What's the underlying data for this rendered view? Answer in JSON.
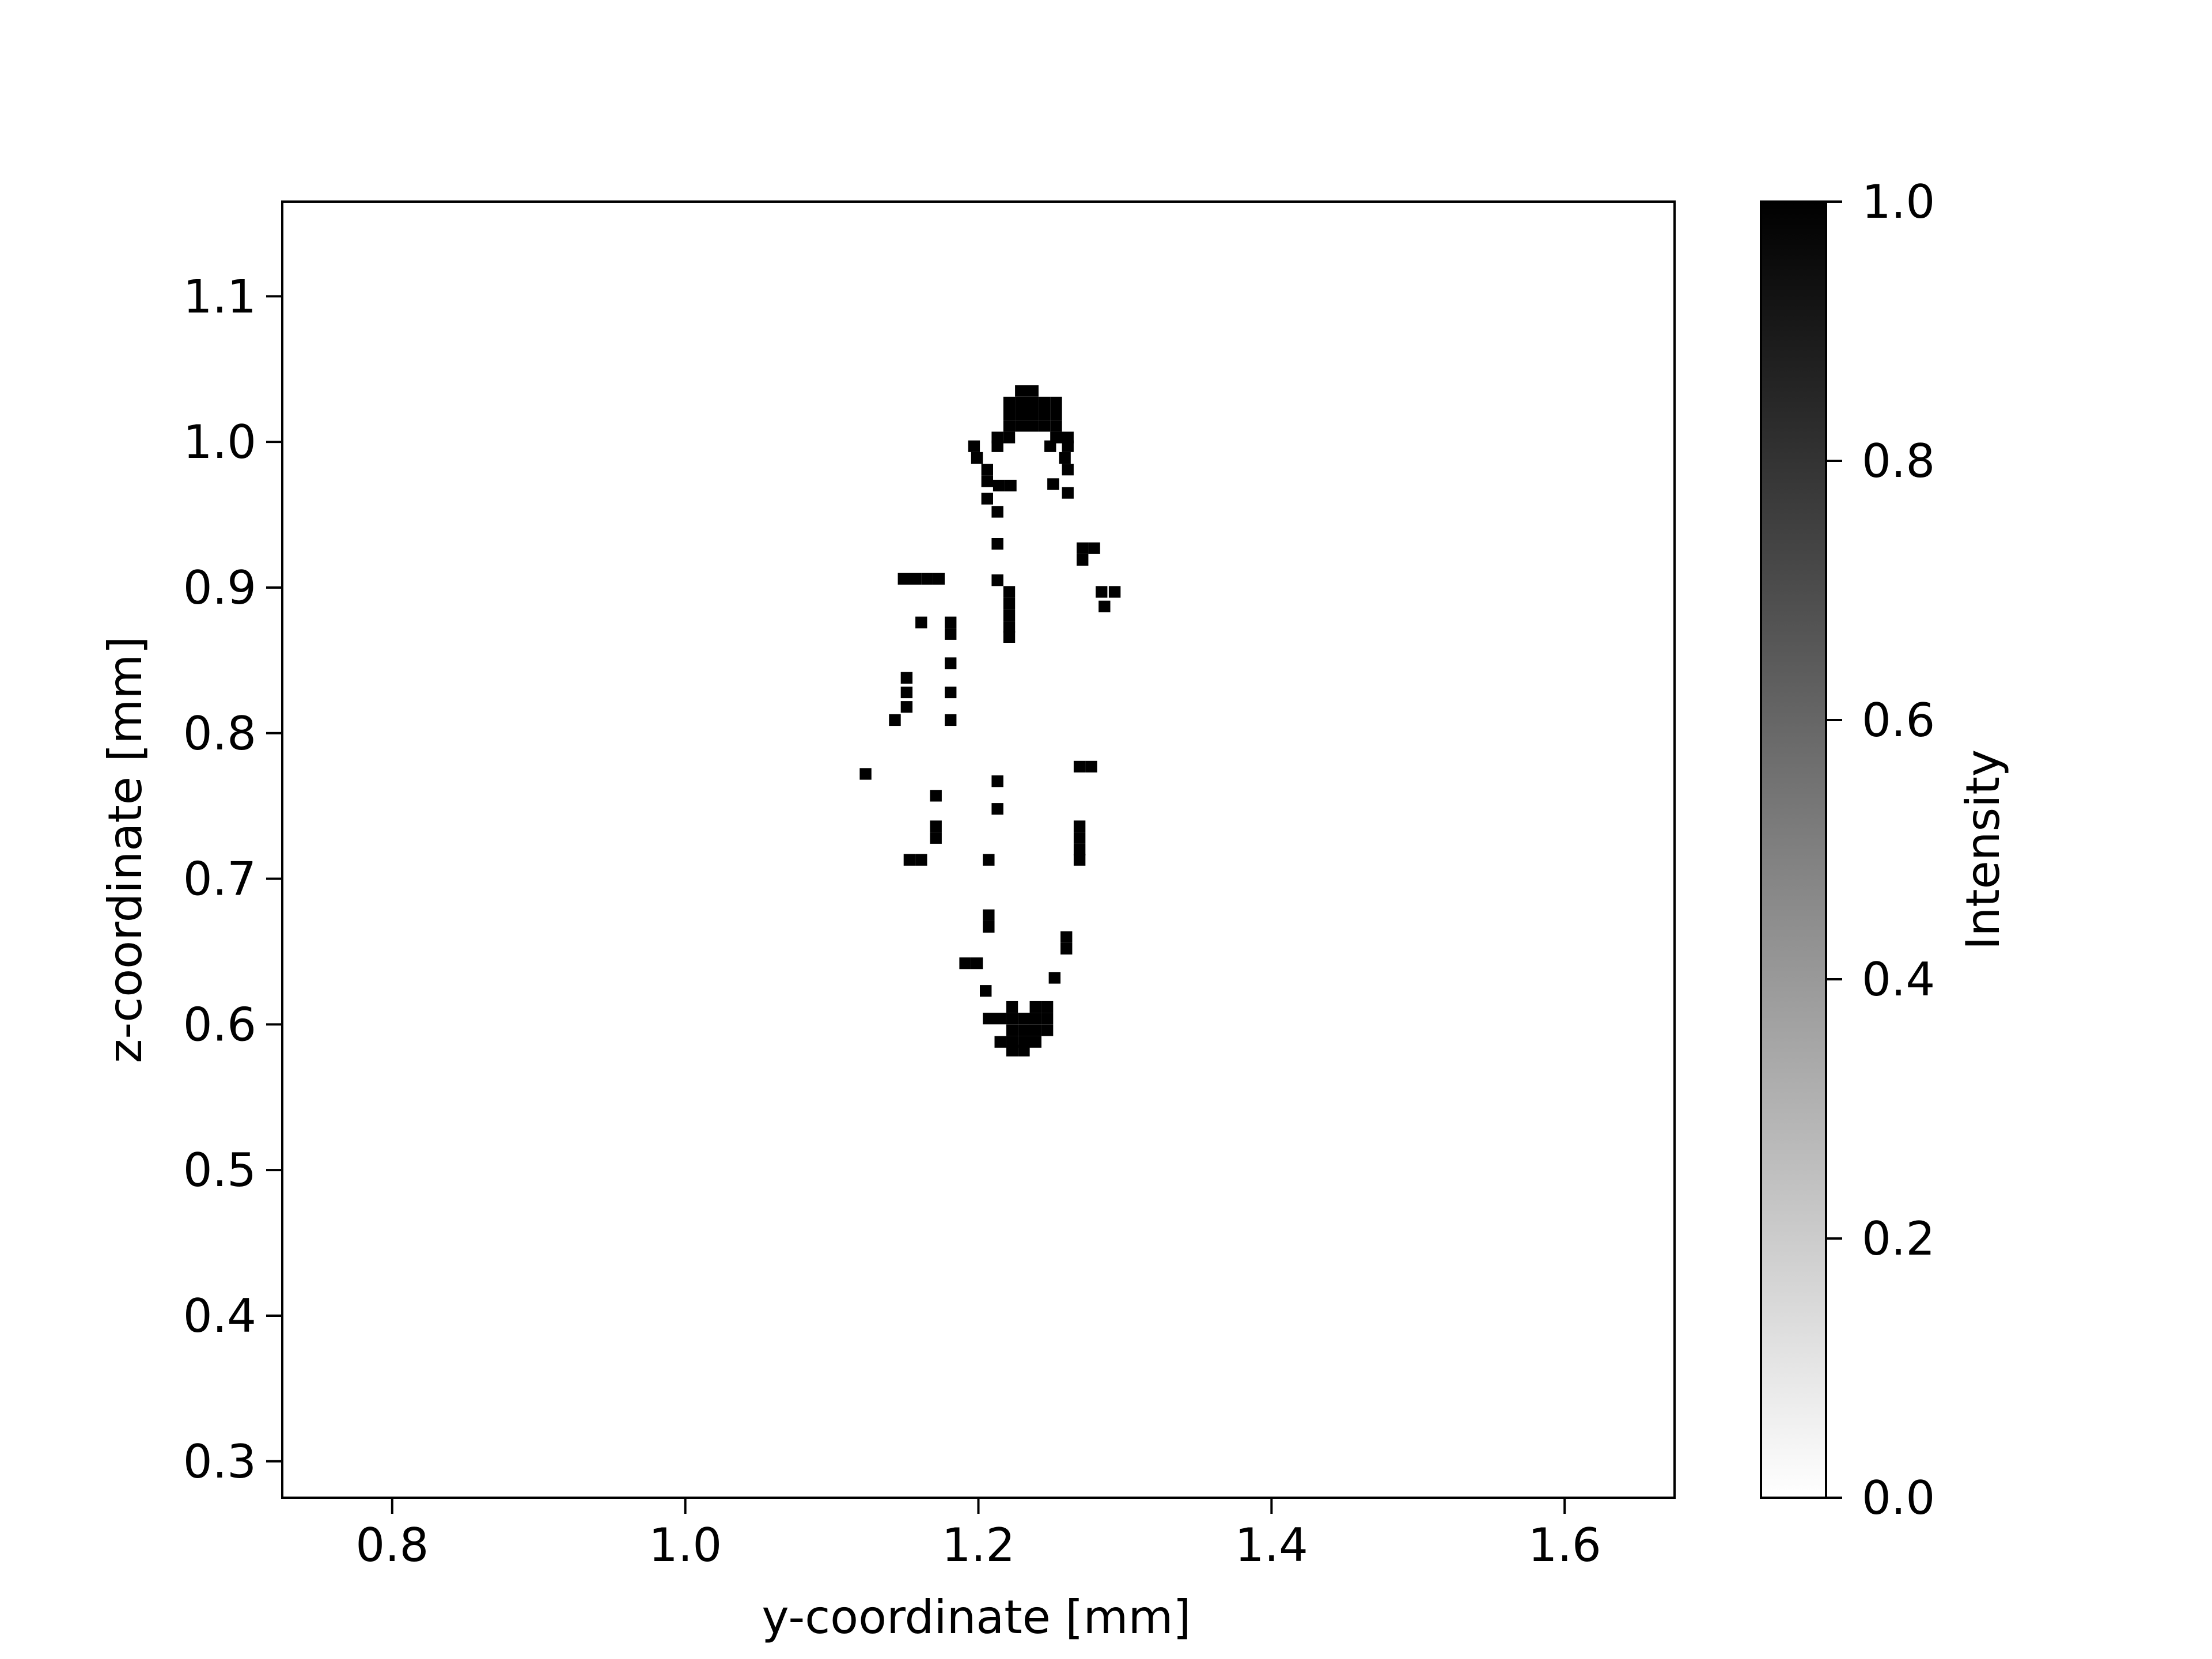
{
  "chart_data": {
    "type": "heatmap",
    "title": "",
    "xlabel": "y-coordinate [mm]",
    "ylabel": "z-coordinate [mm]",
    "xlim": [
      0.725,
      1.675
    ],
    "ylim": [
      0.275,
      1.165
    ],
    "x_ticks": [
      0.8,
      1.0,
      1.2,
      1.4,
      1.6
    ],
    "x_tick_labels": [
      "0.8",
      "1.0",
      "1.2",
      "1.4",
      "1.6"
    ],
    "y_ticks": [
      0.3,
      0.4,
      0.5,
      0.6,
      0.7,
      0.8,
      0.9,
      1.0,
      1.1
    ],
    "y_tick_labels": [
      "0.3",
      "0.4",
      "0.5",
      "0.6",
      "0.7",
      "0.8",
      "0.9",
      "1.0",
      "1.1"
    ],
    "grid": false,
    "colormap": "Greys",
    "colorbar": {
      "label": "Intensity",
      "range": [
        0.0,
        1.0
      ],
      "ticks": [
        0.0,
        0.2,
        0.4,
        0.6,
        0.8,
        1.0
      ],
      "tick_labels": [
        "0.0",
        "0.2",
        "0.4",
        "0.6",
        "0.8",
        "1.0"
      ],
      "color_low": "#ffffff",
      "color_high": "#000000"
    },
    "cell_size_mm": 0.008,
    "cells": [
      {
        "y": 1.229,
        "z": 1.035,
        "v": 1
      },
      {
        "y": 1.237,
        "z": 1.035,
        "v": 1
      },
      {
        "y": 1.221,
        "z": 1.027,
        "v": 1
      },
      {
        "y": 1.229,
        "z": 1.027,
        "v": 1
      },
      {
        "y": 1.237,
        "z": 1.027,
        "v": 1
      },
      {
        "y": 1.245,
        "z": 1.027,
        "v": 1
      },
      {
        "y": 1.253,
        "z": 1.027,
        "v": 1
      },
      {
        "y": 1.221,
        "z": 1.019,
        "v": 1
      },
      {
        "y": 1.229,
        "z": 1.019,
        "v": 1
      },
      {
        "y": 1.237,
        "z": 1.019,
        "v": 1
      },
      {
        "y": 1.245,
        "z": 1.019,
        "v": 1
      },
      {
        "y": 1.253,
        "z": 1.019,
        "v": 1
      },
      {
        "y": 1.221,
        "z": 1.011,
        "v": 1
      },
      {
        "y": 1.229,
        "z": 1.011,
        "v": 1
      },
      {
        "y": 1.237,
        "z": 1.011,
        "v": 1
      },
      {
        "y": 1.245,
        "z": 1.011,
        "v": 1
      },
      {
        "y": 1.253,
        "z": 1.011,
        "v": 1
      },
      {
        "y": 1.213,
        "z": 1.003,
        "v": 1
      },
      {
        "y": 1.221,
        "z": 1.003,
        "v": 1
      },
      {
        "y": 1.253,
        "z": 1.003,
        "v": 1
      },
      {
        "y": 1.261,
        "z": 1.003,
        "v": 1
      },
      {
        "y": 1.197,
        "z": 0.997,
        "v": 1
      },
      {
        "y": 1.213,
        "z": 0.997,
        "v": 1
      },
      {
        "y": 1.249,
        "z": 0.997,
        "v": 1
      },
      {
        "y": 1.261,
        "z": 0.997,
        "v": 1
      },
      {
        "y": 1.199,
        "z": 0.989,
        "v": 1
      },
      {
        "y": 1.259,
        "z": 0.989,
        "v": 1
      },
      {
        "y": 1.206,
        "z": 0.981,
        "v": 1
      },
      {
        "y": 1.261,
        "z": 0.981,
        "v": 1
      },
      {
        "y": 1.206,
        "z": 0.973,
        "v": 1
      },
      {
        "y": 1.214,
        "z": 0.97,
        "v": 1
      },
      {
        "y": 1.222,
        "z": 0.97,
        "v": 1
      },
      {
        "y": 1.251,
        "z": 0.971,
        "v": 1
      },
      {
        "y": 1.261,
        "z": 0.965,
        "v": 1
      },
      {
        "y": 1.206,
        "z": 0.961,
        "v": 1
      },
      {
        "y": 1.213,
        "z": 0.952,
        "v": 1
      },
      {
        "y": 1.213,
        "z": 0.93,
        "v": 1
      },
      {
        "y": 1.271,
        "z": 0.927,
        "v": 1
      },
      {
        "y": 1.279,
        "z": 0.927,
        "v": 1
      },
      {
        "y": 1.271,
        "z": 0.919,
        "v": 1
      },
      {
        "y": 1.213,
        "z": 0.905,
        "v": 1
      },
      {
        "y": 1.149,
        "z": 0.906,
        "v": 1
      },
      {
        "y": 1.157,
        "z": 0.906,
        "v": 1
      },
      {
        "y": 1.165,
        "z": 0.906,
        "v": 1
      },
      {
        "y": 1.173,
        "z": 0.906,
        "v": 1
      },
      {
        "y": 1.221,
        "z": 0.897,
        "v": 1
      },
      {
        "y": 1.284,
        "z": 0.897,
        "v": 1
      },
      {
        "y": 1.293,
        "z": 0.897,
        "v": 1
      },
      {
        "y": 1.221,
        "z": 0.889,
        "v": 1
      },
      {
        "y": 1.286,
        "z": 0.887,
        "v": 1
      },
      {
        "y": 1.221,
        "z": 0.881,
        "v": 1
      },
      {
        "y": 1.161,
        "z": 0.876,
        "v": 1
      },
      {
        "y": 1.181,
        "z": 0.876,
        "v": 1
      },
      {
        "y": 1.221,
        "z": 0.873,
        "v": 1
      },
      {
        "y": 1.181,
        "z": 0.868,
        "v": 1
      },
      {
        "y": 1.221,
        "z": 0.866,
        "v": 1
      },
      {
        "y": 1.181,
        "z": 0.848,
        "v": 1
      },
      {
        "y": 1.151,
        "z": 0.838,
        "v": 1
      },
      {
        "y": 1.151,
        "z": 0.828,
        "v": 1
      },
      {
        "y": 1.181,
        "z": 0.828,
        "v": 1
      },
      {
        "y": 1.151,
        "z": 0.818,
        "v": 1
      },
      {
        "y": 1.143,
        "z": 0.809,
        "v": 1
      },
      {
        "y": 1.181,
        "z": 0.809,
        "v": 1
      },
      {
        "y": 1.269,
        "z": 0.777,
        "v": 1
      },
      {
        "y": 1.277,
        "z": 0.777,
        "v": 1
      },
      {
        "y": 1.123,
        "z": 0.772,
        "v": 1
      },
      {
        "y": 1.213,
        "z": 0.767,
        "v": 1
      },
      {
        "y": 1.171,
        "z": 0.757,
        "v": 1
      },
      {
        "y": 1.213,
        "z": 0.748,
        "v": 1
      },
      {
        "y": 1.171,
        "z": 0.736,
        "v": 1
      },
      {
        "y": 1.269,
        "z": 0.736,
        "v": 1
      },
      {
        "y": 1.171,
        "z": 0.728,
        "v": 1
      },
      {
        "y": 1.269,
        "z": 0.728,
        "v": 1
      },
      {
        "y": 1.269,
        "z": 0.72,
        "v": 1
      },
      {
        "y": 1.153,
        "z": 0.713,
        "v": 1
      },
      {
        "y": 1.161,
        "z": 0.713,
        "v": 1
      },
      {
        "y": 1.207,
        "z": 0.713,
        "v": 1
      },
      {
        "y": 1.269,
        "z": 0.713,
        "v": 1
      },
      {
        "y": 1.207,
        "z": 0.675,
        "v": 1
      },
      {
        "y": 1.207,
        "z": 0.667,
        "v": 1
      },
      {
        "y": 1.26,
        "z": 0.66,
        "v": 1
      },
      {
        "y": 1.26,
        "z": 0.652,
        "v": 1
      },
      {
        "y": 1.191,
        "z": 0.642,
        "v": 1
      },
      {
        "y": 1.199,
        "z": 0.642,
        "v": 1
      },
      {
        "y": 1.252,
        "z": 0.632,
        "v": 1
      },
      {
        "y": 1.205,
        "z": 0.623,
        "v": 1
      },
      {
        "y": 1.223,
        "z": 0.612,
        "v": 1
      },
      {
        "y": 1.239,
        "z": 0.612,
        "v": 1
      },
      {
        "y": 1.247,
        "z": 0.612,
        "v": 1
      },
      {
        "y": 1.207,
        "z": 0.604,
        "v": 1
      },
      {
        "y": 1.215,
        "z": 0.604,
        "v": 1
      },
      {
        "y": 1.223,
        "z": 0.604,
        "v": 1
      },
      {
        "y": 1.231,
        "z": 0.604,
        "v": 1
      },
      {
        "y": 1.239,
        "z": 0.604,
        "v": 1
      },
      {
        "y": 1.247,
        "z": 0.604,
        "v": 1
      },
      {
        "y": 1.223,
        "z": 0.596,
        "v": 1
      },
      {
        "y": 1.231,
        "z": 0.596,
        "v": 1
      },
      {
        "y": 1.239,
        "z": 0.596,
        "v": 1
      },
      {
        "y": 1.247,
        "z": 0.596,
        "v": 1
      },
      {
        "y": 1.215,
        "z": 0.588,
        "v": 1
      },
      {
        "y": 1.223,
        "z": 0.588,
        "v": 1
      },
      {
        "y": 1.231,
        "z": 0.588,
        "v": 1
      },
      {
        "y": 1.239,
        "z": 0.588,
        "v": 1
      },
      {
        "y": 1.223,
        "z": 0.582,
        "v": 1
      },
      {
        "y": 1.231,
        "z": 0.582,
        "v": 1
      }
    ]
  }
}
